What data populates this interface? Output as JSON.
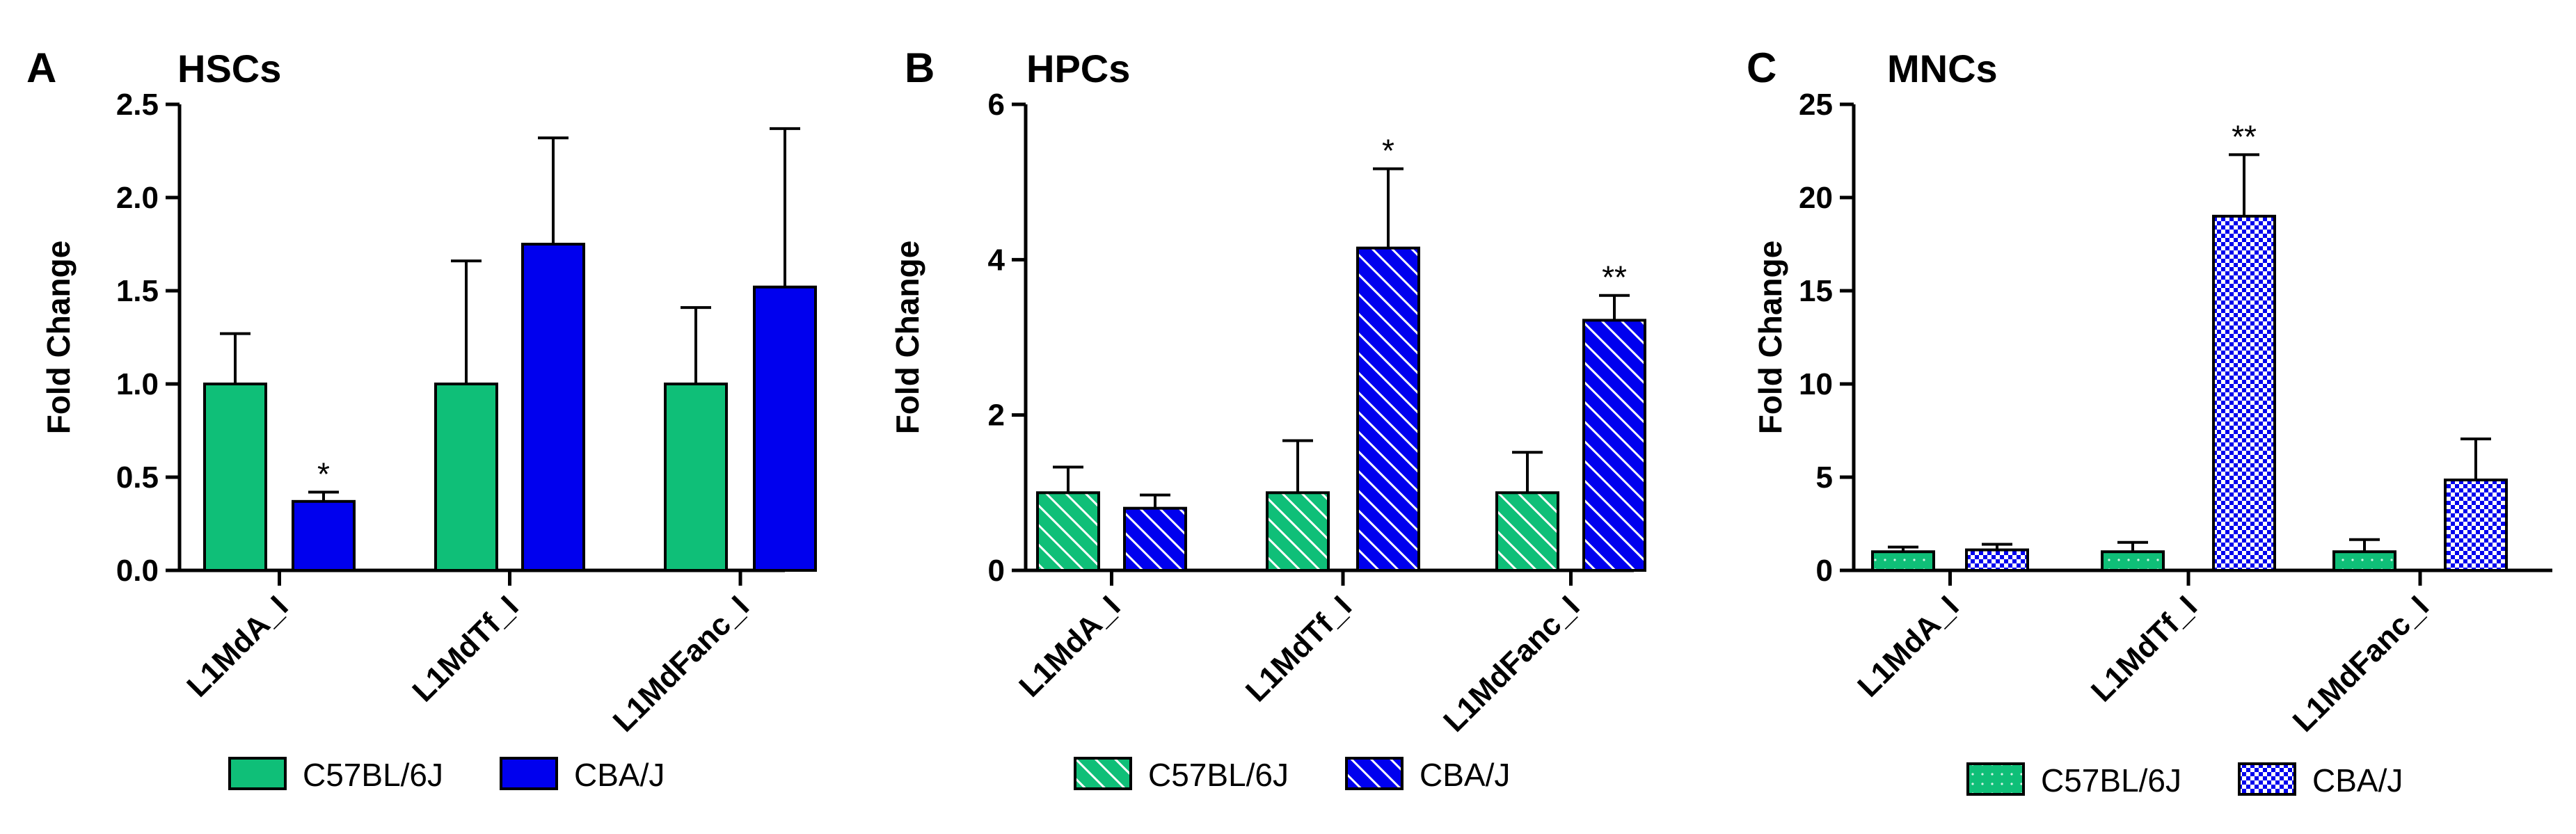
{
  "colors": {
    "green": "#0fbf78",
    "blue": "#0000ee",
    "axis": "#000000"
  },
  "chart_data": [
    {
      "panel": "A",
      "title": "HSCs",
      "type": "bar",
      "ylabel": "Fold Change",
      "xlabel": "",
      "ylim": [
        0,
        2.5
      ],
      "yticks": [
        "0.0",
        "0.5",
        "1.0",
        "1.5",
        "2.0",
        "2.5"
      ],
      "categories": [
        "L1MdA_I",
        "L1MdTf_I",
        "L1MdFanc_I"
      ],
      "fill": "solid",
      "series": [
        {
          "name": "C57BL/6J",
          "color": "#0fbf78",
          "values": [
            1.0,
            1.0,
            1.0
          ],
          "errors": [
            0.27,
            0.66,
            0.41
          ],
          "significance": [
            "",
            "",
            ""
          ]
        },
        {
          "name": "CBA/J",
          "color": "#0000ee",
          "values": [
            0.37,
            1.75,
            1.52
          ],
          "errors": [
            0.05,
            0.57,
            0.85
          ],
          "significance": [
            "*",
            "",
            ""
          ]
        }
      ],
      "legend": "bottom"
    },
    {
      "panel": "B",
      "title": "HPCs",
      "type": "bar",
      "ylabel": "Fold Change",
      "xlabel": "",
      "ylim": [
        0,
        6
      ],
      "yticks": [
        "0",
        "2",
        "4",
        "6"
      ],
      "categories": [
        "L1MdA_I",
        "L1MdTf_I",
        "L1MdFanc_I"
      ],
      "fill": "diagonal-hatch",
      "series": [
        {
          "name": "C57BL/6J",
          "color": "#0fbf78",
          "values": [
            1.0,
            1.0,
            1.0
          ],
          "errors": [
            0.33,
            0.67,
            0.52
          ],
          "significance": [
            "",
            "",
            ""
          ]
        },
        {
          "name": "CBA/J",
          "color": "#0000ee",
          "values": [
            0.8,
            4.15,
            3.22
          ],
          "errors": [
            0.17,
            1.02,
            0.32
          ],
          "significance": [
            "",
            "*",
            "**"
          ]
        }
      ],
      "legend": "bottom"
    },
    {
      "panel": "C",
      "title": "MNCs",
      "type": "bar",
      "ylabel": "Fold Change",
      "xlabel": "",
      "ylim": [
        0,
        25
      ],
      "yticks": [
        "0",
        "5",
        "10",
        "15",
        "20",
        "25"
      ],
      "categories": [
        "L1MdA_I",
        "L1MdTf_I",
        "L1MdFanc_I"
      ],
      "fill": "dotted / checkered",
      "series": [
        {
          "name": "C57BL/6J",
          "color": "#0fbf78",
          "values": [
            1.0,
            1.0,
            1.0
          ],
          "errors": [
            0.25,
            0.5,
            0.65
          ],
          "significance": [
            "",
            "",
            ""
          ]
        },
        {
          "name": "CBA/J",
          "color": "#0000ee",
          "values": [
            1.1,
            19.0,
            4.85
          ],
          "errors": [
            0.3,
            3.3,
            2.2
          ],
          "significance": [
            "",
            "**",
            ""
          ]
        }
      ],
      "legend": "bottom"
    }
  ]
}
